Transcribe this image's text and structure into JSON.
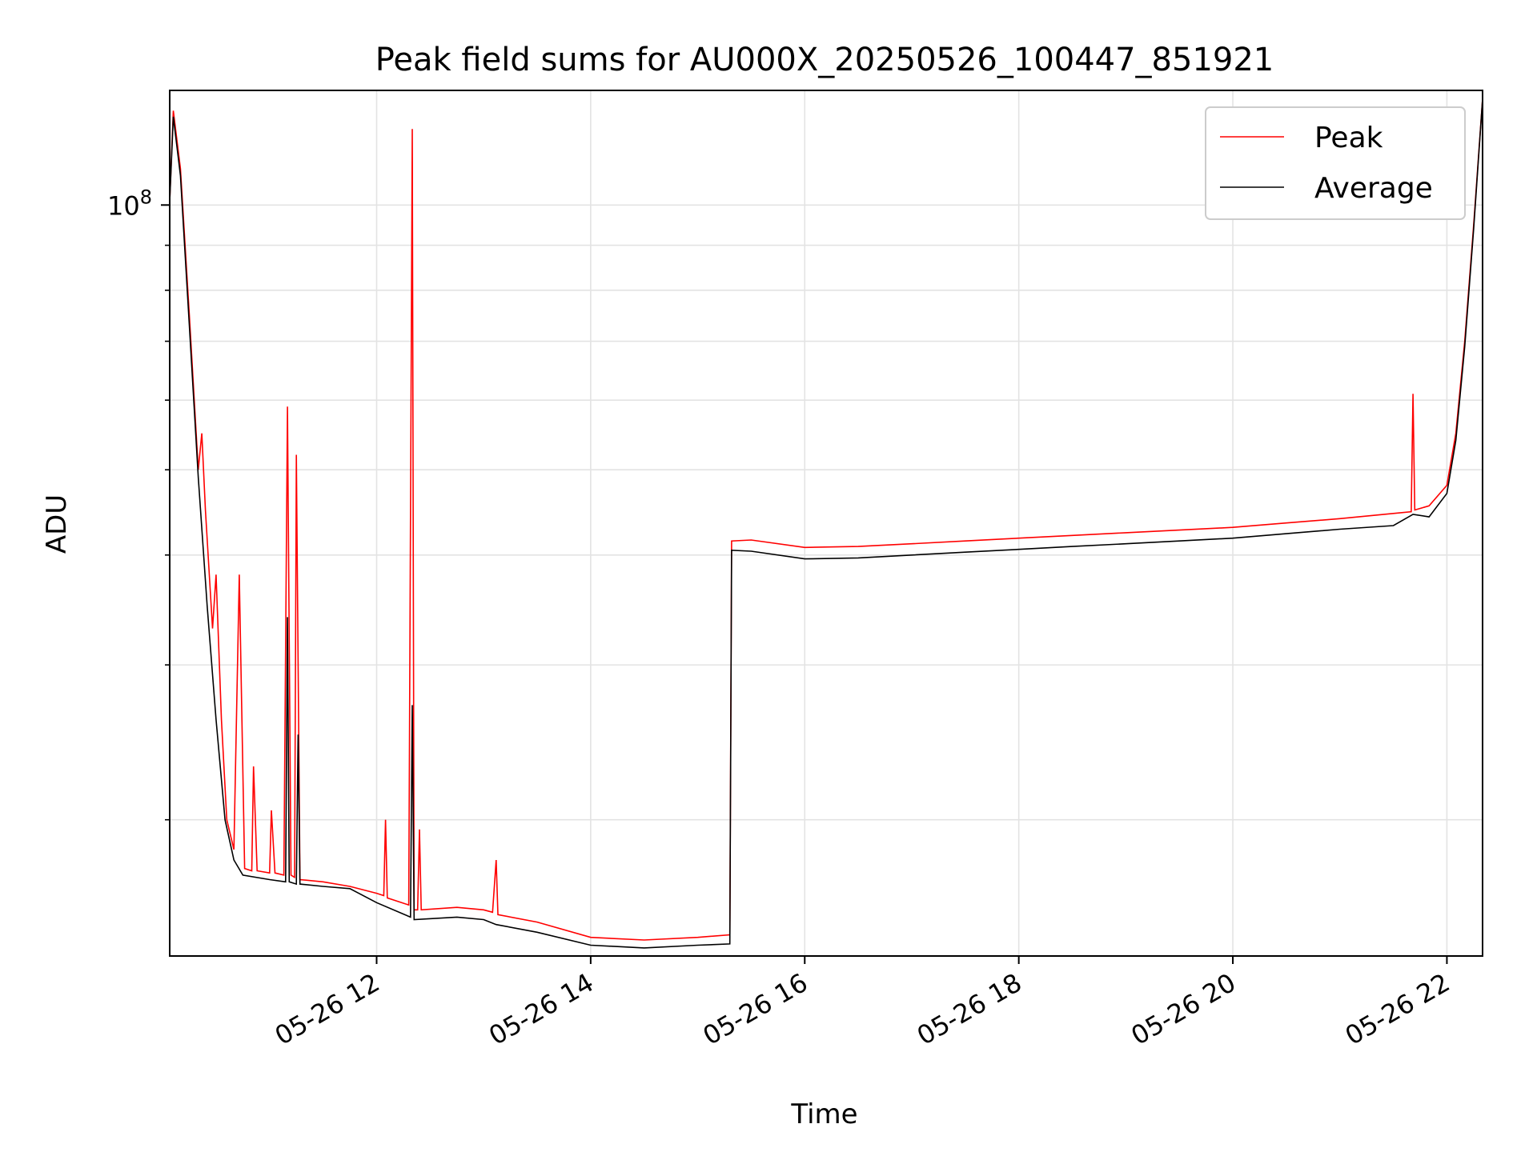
{
  "chart_data": {
    "type": "line",
    "title": "Peak field sums for AU000X_20250526_100447_851921",
    "xlabel": "Time",
    "ylabel": "ADU",
    "y_scale": "log",
    "grid": true,
    "legend_position": "upper right",
    "x_ticks": [
      "05-26 12",
      "05-26 14",
      "05-26 16",
      "05-26 18",
      "05-26 20",
      "05-26 22"
    ],
    "y_ticks": [
      "10^8"
    ],
    "xlim": [
      "2025-05-26 10:04",
      "2025-05-26 22:20"
    ],
    "ylim": [
      14000000,
      135000000
    ],
    "series": [
      {
        "name": "Peak",
        "color": "#ff0000",
        "points": [
          [
            "2025-05-26 10:04",
            101000000
          ],
          [
            "2025-05-26 10:06",
            128000000
          ],
          [
            "2025-05-26 10:10",
            110000000
          ],
          [
            "2025-05-26 10:15",
            75000000
          ],
          [
            "2025-05-26 10:20",
            50000000
          ],
          [
            "2025-05-26 10:22",
            55000000
          ],
          [
            "2025-05-26 10:24",
            45000000
          ],
          [
            "2025-05-26 10:28",
            33000000
          ],
          [
            "2025-05-26 10:30",
            38000000
          ],
          [
            "2025-05-26 10:33",
            26000000
          ],
          [
            "2025-05-26 10:36",
            20000000
          ],
          [
            "2025-05-26 10:40",
            18500000
          ],
          [
            "2025-05-26 10:43",
            38000000
          ],
          [
            "2025-05-26 10:46",
            17600000
          ],
          [
            "2025-05-26 10:50",
            17500000
          ],
          [
            "2025-05-26 10:51",
            23000000
          ],
          [
            "2025-05-26 10:53",
            17500000
          ],
          [
            "2025-05-26 11:00",
            17400000
          ],
          [
            "2025-05-26 11:01",
            20500000
          ],
          [
            "2025-05-26 11:03",
            17400000
          ],
          [
            "2025-05-26 11:08",
            17300000
          ],
          [
            "2025-05-26 11:10",
            59000000
          ],
          [
            "2025-05-26 11:12",
            17300000
          ],
          [
            "2025-05-26 11:14",
            17200000
          ],
          [
            "2025-05-26 11:15",
            52000000
          ],
          [
            "2025-05-26 11:17",
            17100000
          ],
          [
            "2025-05-26 11:30",
            17000000
          ],
          [
            "2025-05-26 11:45",
            16800000
          ],
          [
            "2025-05-26 12:00",
            16500000
          ],
          [
            "2025-05-26 12:04",
            16400000
          ],
          [
            "2025-05-26 12:05",
            20000000
          ],
          [
            "2025-05-26 12:06",
            16300000
          ],
          [
            "2025-05-26 12:18",
            16000000
          ],
          [
            "2025-05-26 12:20",
            122000000
          ],
          [
            "2025-05-26 12:21",
            15800000
          ],
          [
            "2025-05-26 12:23",
            15800000
          ],
          [
            "2025-05-26 12:24",
            19500000
          ],
          [
            "2025-05-26 12:25",
            15800000
          ],
          [
            "2025-05-26 12:45",
            15900000
          ],
          [
            "2025-05-26 13:00",
            15800000
          ],
          [
            "2025-05-26 13:05",
            15700000
          ],
          [
            "2025-05-26 13:07",
            18000000
          ],
          [
            "2025-05-26 13:08",
            15600000
          ],
          [
            "2025-05-26 13:30",
            15300000
          ],
          [
            "2025-05-26 14:00",
            14700000
          ],
          [
            "2025-05-26 14:30",
            14600000
          ],
          [
            "2025-05-26 15:00",
            14700000
          ],
          [
            "2025-05-26 15:18",
            14800000
          ],
          [
            "2025-05-26 15:19",
            41500000
          ],
          [
            "2025-05-26 15:30",
            41600000
          ],
          [
            "2025-05-26 16:00",
            40800000
          ],
          [
            "2025-05-26 16:30",
            40900000
          ],
          [
            "2025-05-26 17:00",
            41200000
          ],
          [
            "2025-05-26 17:30",
            41500000
          ],
          [
            "2025-05-26 18:00",
            41800000
          ],
          [
            "2025-05-26 18:30",
            42100000
          ],
          [
            "2025-05-26 19:00",
            42400000
          ],
          [
            "2025-05-26 19:30",
            42700000
          ],
          [
            "2025-05-26 20:00",
            43000000
          ],
          [
            "2025-05-26 20:30",
            43500000
          ],
          [
            "2025-05-26 21:00",
            44000000
          ],
          [
            "2025-05-26 21:30",
            44600000
          ],
          [
            "2025-05-26 21:40",
            44800000
          ],
          [
            "2025-05-26 21:41",
            61000000
          ],
          [
            "2025-05-26 21:42",
            45000000
          ],
          [
            "2025-05-26 21:50",
            45500000
          ],
          [
            "2025-05-26 22:00",
            48000000
          ],
          [
            "2025-05-26 22:05",
            55000000
          ],
          [
            "2025-05-26 22:10",
            70000000
          ],
          [
            "2025-05-26 22:15",
            95000000
          ],
          [
            "2025-05-26 22:20",
            132000000
          ]
        ]
      },
      {
        "name": "Average",
        "color": "#000000",
        "points": [
          [
            "2025-05-26 10:04",
            101000000
          ],
          [
            "2025-05-26 10:06",
            126000000
          ],
          [
            "2025-05-26 10:10",
            108000000
          ],
          [
            "2025-05-26 10:15",
            73000000
          ],
          [
            "2025-05-26 10:20",
            49000000
          ],
          [
            "2025-05-26 10:25",
            35000000
          ],
          [
            "2025-05-26 10:30",
            26000000
          ],
          [
            "2025-05-26 10:35",
            20000000
          ],
          [
            "2025-05-26 10:40",
            18000000
          ],
          [
            "2025-05-26 10:45",
            17300000
          ],
          [
            "2025-05-26 11:00",
            17100000
          ],
          [
            "2025-05-26 11:09",
            17000000
          ],
          [
            "2025-05-26 11:10",
            34000000
          ],
          [
            "2025-05-26 11:11",
            17000000
          ],
          [
            "2025-05-26 11:15",
            16900000
          ],
          [
            "2025-05-26 11:16",
            25000000
          ],
          [
            "2025-05-26 11:17",
            16900000
          ],
          [
            "2025-05-26 11:30",
            16800000
          ],
          [
            "2025-05-26 11:45",
            16700000
          ],
          [
            "2025-05-26 12:00",
            16100000
          ],
          [
            "2025-05-26 12:19",
            15500000
          ],
          [
            "2025-05-26 12:20",
            27000000
          ],
          [
            "2025-05-26 12:21",
            15400000
          ],
          [
            "2025-05-26 12:45",
            15500000
          ],
          [
            "2025-05-26 13:00",
            15400000
          ],
          [
            "2025-05-26 13:07",
            15200000
          ],
          [
            "2025-05-26 13:30",
            14900000
          ],
          [
            "2025-05-26 14:00",
            14400000
          ],
          [
            "2025-05-26 14:30",
            14300000
          ],
          [
            "2025-05-26 15:00",
            14400000
          ],
          [
            "2025-05-26 15:18",
            14450000
          ],
          [
            "2025-05-26 15:19",
            40500000
          ],
          [
            "2025-05-26 15:30",
            40400000
          ],
          [
            "2025-05-26 16:00",
            39600000
          ],
          [
            "2025-05-26 16:30",
            39700000
          ],
          [
            "2025-05-26 17:00",
            40000000
          ],
          [
            "2025-05-26 17:30",
            40300000
          ],
          [
            "2025-05-26 18:00",
            40600000
          ],
          [
            "2025-05-26 18:30",
            40900000
          ],
          [
            "2025-05-26 19:00",
            41200000
          ],
          [
            "2025-05-26 19:30",
            41500000
          ],
          [
            "2025-05-26 20:00",
            41800000
          ],
          [
            "2025-05-26 20:30",
            42300000
          ],
          [
            "2025-05-26 21:00",
            42800000
          ],
          [
            "2025-05-26 21:30",
            43200000
          ],
          [
            "2025-05-26 21:41",
            44500000
          ],
          [
            "2025-05-26 21:50",
            44200000
          ],
          [
            "2025-05-26 22:00",
            47000000
          ],
          [
            "2025-05-26 22:05",
            54000000
          ],
          [
            "2025-05-26 22:10",
            69000000
          ],
          [
            "2025-05-26 22:15",
            94000000
          ],
          [
            "2025-05-26 22:20",
            132000000
          ]
        ]
      }
    ]
  }
}
